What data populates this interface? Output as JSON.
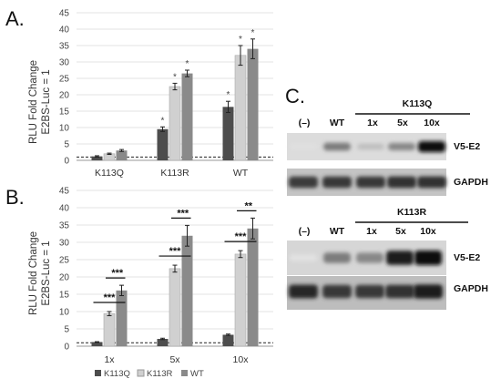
{
  "panels": {
    "a": "A.",
    "b": "B.",
    "c": "C."
  },
  "colors": {
    "K113Q": "#4d4d4d",
    "K113R": "#d0d0d0",
    "WT": "#8a8a8a",
    "grid": "#e3e3e3",
    "axis": "#9a9a9a"
  },
  "legend": [
    {
      "name": "K113Q",
      "color": "#4d4d4d"
    },
    {
      "name": "K113R",
      "color": "#d0d0d0"
    },
    {
      "name": "WT",
      "color": "#8a8a8a"
    }
  ],
  "chart_data": [
    {
      "type": "bar",
      "panel": "A.",
      "ylabel": [
        "RLU Fold Change",
        "E2BS-Luc = 1"
      ],
      "ylim": [
        0,
        45
      ],
      "yticks": [
        0,
        5,
        10,
        15,
        20,
        25,
        30,
        35,
        40,
        45
      ],
      "grid": true,
      "baseline": 1,
      "categories": [
        "K113Q",
        "K113R",
        "WT"
      ],
      "groups": [
        {
          "category": "K113Q",
          "bars": [
            {
              "value": 1.2,
              "err": 0.2,
              "mark": ""
            },
            {
              "value": 2.0,
              "err": 0.2,
              "mark": ""
            },
            {
              "value": 3.0,
              "err": 0.3,
              "mark": ""
            }
          ]
        },
        {
          "category": "K113R",
          "bars": [
            {
              "value": 9.5,
              "err": 0.7,
              "mark": "*"
            },
            {
              "value": 22.5,
              "err": 1.0,
              "mark": "*"
            },
            {
              "value": 26.5,
              "err": 1.0,
              "mark": "*"
            }
          ]
        },
        {
          "category": "WT",
          "bars": [
            {
              "value": 16.3,
              "err": 1.7,
              "mark": "*"
            },
            {
              "value": 32.0,
              "err": 3.0,
              "mark": "*"
            },
            {
              "value": 34.0,
              "err": 3.0,
              "mark": "*"
            }
          ]
        }
      ]
    },
    {
      "type": "bar",
      "panel": "B.",
      "ylabel": [
        "RLU Fold Change",
        "E2BS-Luc = 1"
      ],
      "ylim": [
        0,
        45
      ],
      "yticks": [
        0,
        5,
        10,
        15,
        20,
        25,
        30,
        35,
        40,
        45
      ],
      "grid": true,
      "baseline": 1,
      "categories": [
        "1x",
        "5x",
        "10x"
      ],
      "series": [
        {
          "name": "K113Q",
          "values": [
            1.2,
            2.1,
            3.3
          ],
          "err": [
            0.1,
            0.2,
            0.2
          ]
        },
        {
          "name": "K113R",
          "values": [
            9.4,
            22.4,
            26.6
          ],
          "err": [
            0.6,
            1.0,
            1.0
          ]
        },
        {
          "name": "WT",
          "values": [
            16.1,
            31.9,
            34.0
          ],
          "err": [
            1.5,
            3.0,
            3.0
          ]
        }
      ],
      "significance": [
        {
          "category": "1x",
          "upper": "***",
          "lower": "***"
        },
        {
          "category": "5x",
          "upper": "***",
          "lower": "***"
        },
        {
          "category": "10x",
          "upper": "**",
          "lower": "***"
        }
      ]
    }
  ],
  "blots": {
    "panel": "C.",
    "group1": {
      "header": "K113Q",
      "lanes": [
        "(–)",
        "WT",
        "1x",
        "5x",
        "10x"
      ],
      "rows": [
        "V5-E2",
        "GAPDH"
      ],
      "v5": [
        0.05,
        0.5,
        0.2,
        0.45,
        1.0
      ],
      "gapdh": [
        0.8,
        0.82,
        0.82,
        0.85,
        0.85
      ]
    },
    "group2": {
      "header": "K113R",
      "lanes": [
        "(–)",
        "WT",
        "1x",
        "5x",
        "10x"
      ],
      "rows": [
        "V5-E2",
        "GAPDH"
      ],
      "v5": [
        0.04,
        0.5,
        0.45,
        0.95,
        1.0
      ],
      "gapdh": [
        0.9,
        0.82,
        0.82,
        0.85,
        0.95
      ]
    }
  }
}
